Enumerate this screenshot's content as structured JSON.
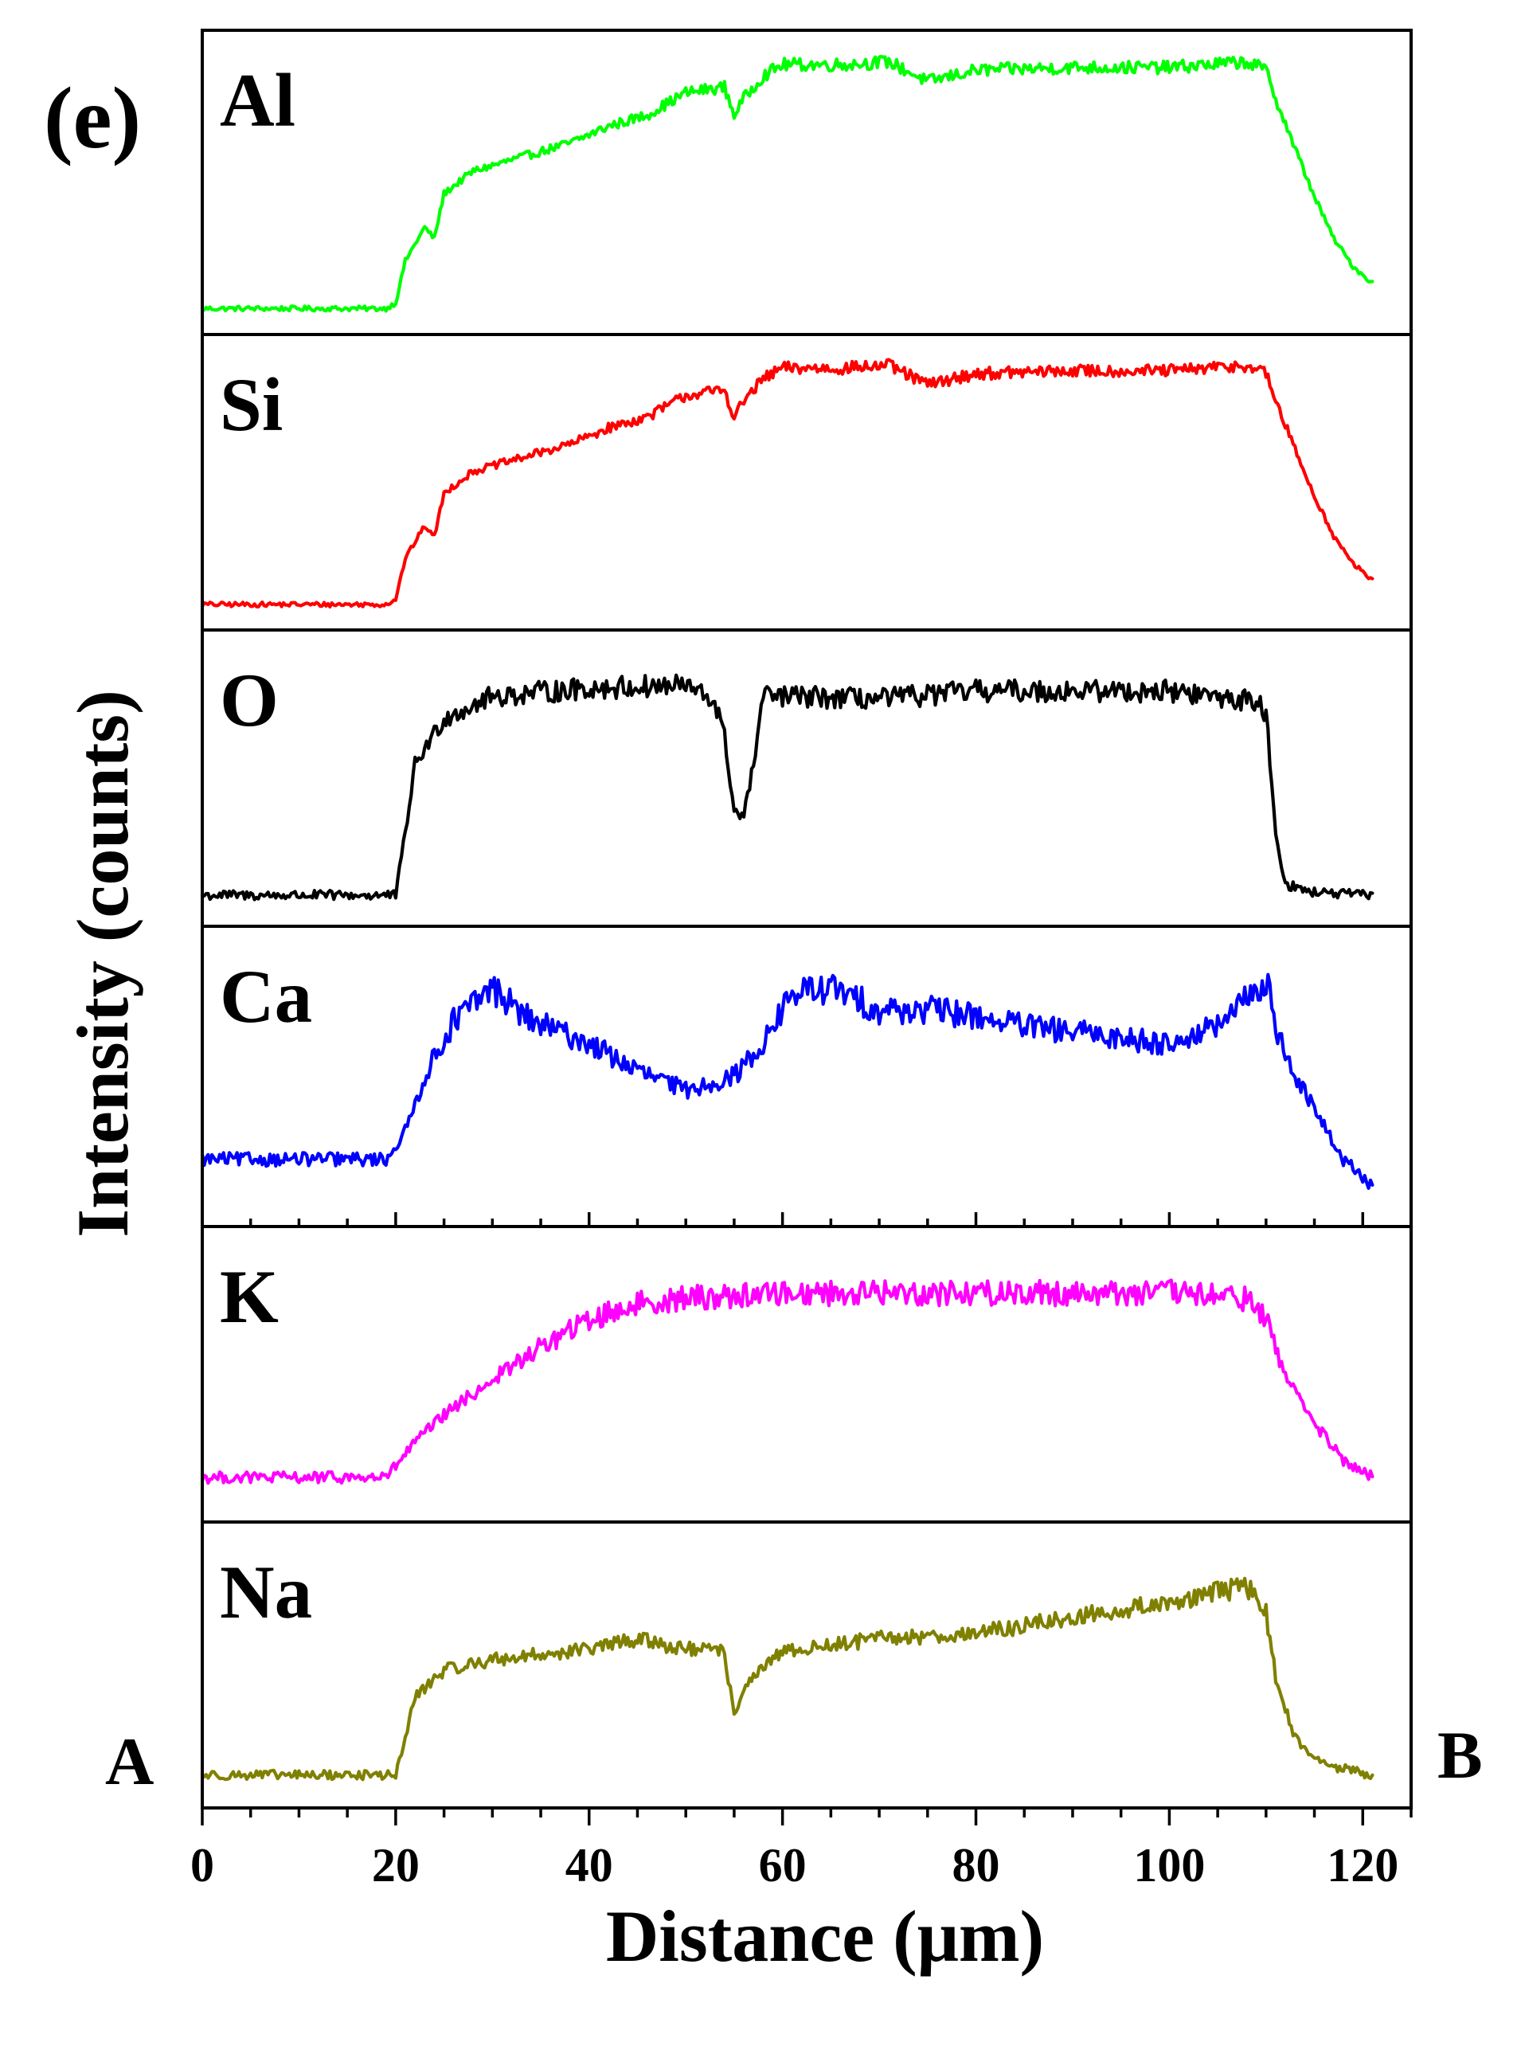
{
  "chart_data": {
    "type": "line",
    "panel_tag": "(e)",
    "xlabel": "Distance (μm)",
    "ylabel": "Intensity (counts)",
    "xlim": [
      0,
      125
    ],
    "x_ticks": [
      "0",
      "20",
      "40",
      "60",
      "80",
      "100",
      "120"
    ],
    "x_tick_values": [
      0,
      20,
      40,
      60,
      80,
      100,
      120
    ],
    "x_minor_step": 5,
    "start_label": "A",
    "end_label": "B",
    "grid": false,
    "legend": "none",
    "stacked_panels": true,
    "series": [
      {
        "name": "Al",
        "color": "#00ff00",
        "noise": 0.025,
        "points": [
          [
            0,
            0.05
          ],
          [
            19,
            0.05
          ],
          [
            20,
            0.07
          ],
          [
            21,
            0.22
          ],
          [
            23,
            0.34
          ],
          [
            24,
            0.3
          ],
          [
            25,
            0.46
          ],
          [
            28,
            0.54
          ],
          [
            30,
            0.56
          ],
          [
            34,
            0.6
          ],
          [
            38,
            0.64
          ],
          [
            42,
            0.7
          ],
          [
            46,
            0.74
          ],
          [
            50,
            0.82
          ],
          [
            54,
            0.84
          ],
          [
            55,
            0.74
          ],
          [
            56,
            0.8
          ],
          [
            58,
            0.88
          ],
          [
            60,
            0.92
          ],
          [
            66,
            0.92
          ],
          [
            71,
            0.93
          ],
          [
            75,
            0.86
          ],
          [
            80,
            0.9
          ],
          [
            90,
            0.91
          ],
          [
            100,
            0.91
          ],
          [
            108,
            0.93
          ],
          [
            110,
            0.9
          ],
          [
            111,
            0.8
          ],
          [
            113,
            0.62
          ],
          [
            115,
            0.45
          ],
          [
            117,
            0.3
          ],
          [
            119,
            0.2
          ],
          [
            121,
            0.14
          ]
        ]
      },
      {
        "name": "Si",
        "color": "#ff0000",
        "noise": 0.025,
        "points": [
          [
            0,
            0.05
          ],
          [
            19,
            0.05
          ],
          [
            20,
            0.07
          ],
          [
            21,
            0.22
          ],
          [
            23,
            0.34
          ],
          [
            24,
            0.3
          ],
          [
            25,
            0.46
          ],
          [
            28,
            0.54
          ],
          [
            30,
            0.56
          ],
          [
            34,
            0.6
          ],
          [
            38,
            0.64
          ],
          [
            42,
            0.7
          ],
          [
            46,
            0.74
          ],
          [
            50,
            0.82
          ],
          [
            54,
            0.84
          ],
          [
            55,
            0.74
          ],
          [
            56,
            0.8
          ],
          [
            58,
            0.88
          ],
          [
            60,
            0.92
          ],
          [
            66,
            0.92
          ],
          [
            71,
            0.93
          ],
          [
            75,
            0.86
          ],
          [
            80,
            0.9
          ],
          [
            90,
            0.91
          ],
          [
            100,
            0.91
          ],
          [
            108,
            0.93
          ],
          [
            110,
            0.9
          ],
          [
            111,
            0.8
          ],
          [
            113,
            0.62
          ],
          [
            115,
            0.45
          ],
          [
            117,
            0.3
          ],
          [
            119,
            0.2
          ],
          [
            121,
            0.14
          ]
        ]
      },
      {
        "name": "O",
        "color": "#000000",
        "noise": 0.05,
        "points": [
          [
            0,
            0.07
          ],
          [
            20,
            0.07
          ],
          [
            21,
            0.3
          ],
          [
            22,
            0.55
          ],
          [
            25,
            0.72
          ],
          [
            30,
            0.8
          ],
          [
            40,
            0.83
          ],
          [
            50,
            0.84
          ],
          [
            53,
            0.78
          ],
          [
            54,
            0.65
          ],
          [
            55,
            0.38
          ],
          [
            56,
            0.36
          ],
          [
            57,
            0.55
          ],
          [
            58,
            0.8
          ],
          [
            60,
            0.8
          ],
          [
            70,
            0.79
          ],
          [
            80,
            0.82
          ],
          [
            90,
            0.82
          ],
          [
            100,
            0.82
          ],
          [
            109,
            0.78
          ],
          [
            110,
            0.74
          ],
          [
            111,
            0.3
          ],
          [
            112,
            0.11
          ],
          [
            115,
            0.08
          ],
          [
            121,
            0.07
          ]
        ]
      },
      {
        "name": "Ca",
        "color": "#0000ff",
        "noise": 0.07,
        "points": [
          [
            0,
            0.2
          ],
          [
            10,
            0.2
          ],
          [
            19,
            0.2
          ],
          [
            21,
            0.3
          ],
          [
            23,
            0.5
          ],
          [
            26,
            0.7
          ],
          [
            30,
            0.82
          ],
          [
            34,
            0.7
          ],
          [
            40,
            0.62
          ],
          [
            45,
            0.52
          ],
          [
            50,
            0.45
          ],
          [
            55,
            0.5
          ],
          [
            58,
            0.62
          ],
          [
            61,
            0.8
          ],
          [
            65,
            0.82
          ],
          [
            70,
            0.74
          ],
          [
            75,
            0.74
          ],
          [
            80,
            0.72
          ],
          [
            85,
            0.68
          ],
          [
            90,
            0.66
          ],
          [
            95,
            0.64
          ],
          [
            100,
            0.62
          ],
          [
            105,
            0.68
          ],
          [
            108,
            0.78
          ],
          [
            110,
            0.85
          ],
          [
            111,
            0.68
          ],
          [
            113,
            0.5
          ],
          [
            116,
            0.32
          ],
          [
            118,
            0.2
          ],
          [
            121,
            0.1
          ]
        ]
      },
      {
        "name": "K",
        "color": "#ff00ff",
        "noise": 0.06,
        "points": [
          [
            0,
            0.12
          ],
          [
            10,
            0.12
          ],
          [
            19,
            0.12
          ],
          [
            22,
            0.25
          ],
          [
            25,
            0.35
          ],
          [
            30,
            0.48
          ],
          [
            35,
            0.6
          ],
          [
            40,
            0.7
          ],
          [
            45,
            0.76
          ],
          [
            50,
            0.78
          ],
          [
            60,
            0.8
          ],
          [
            70,
            0.8
          ],
          [
            80,
            0.8
          ],
          [
            90,
            0.8
          ],
          [
            100,
            0.8
          ],
          [
            108,
            0.78
          ],
          [
            110,
            0.7
          ],
          [
            112,
            0.5
          ],
          [
            115,
            0.32
          ],
          [
            118,
            0.18
          ],
          [
            121,
            0.12
          ]
        ]
      },
      {
        "name": "Na",
        "color": "#808000",
        "noise": 0.05,
        "points": [
          [
            0,
            0.08
          ],
          [
            18,
            0.08
          ],
          [
            20,
            0.08
          ],
          [
            21,
            0.22
          ],
          [
            22,
            0.38
          ],
          [
            25,
            0.48
          ],
          [
            30,
            0.52
          ],
          [
            40,
            0.56
          ],
          [
            45,
            0.6
          ],
          [
            50,
            0.56
          ],
          [
            54,
            0.55
          ],
          [
            55,
            0.3
          ],
          [
            56,
            0.42
          ],
          [
            60,
            0.55
          ],
          [
            70,
            0.6
          ],
          [
            80,
            0.62
          ],
          [
            90,
            0.68
          ],
          [
            100,
            0.74
          ],
          [
            108,
            0.8
          ],
          [
            110,
            0.7
          ],
          [
            111,
            0.45
          ],
          [
            113,
            0.22
          ],
          [
            116,
            0.12
          ],
          [
            121,
            0.08
          ]
        ]
      }
    ]
  }
}
